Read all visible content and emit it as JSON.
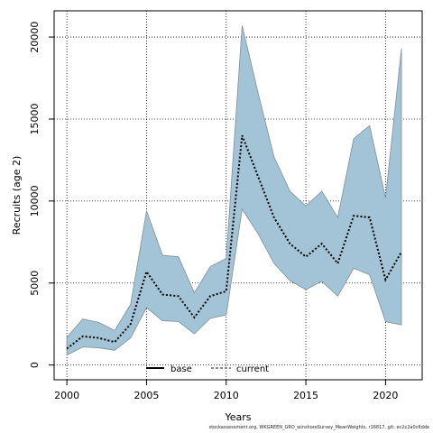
{
  "chart_data": {
    "type": "area",
    "xlabel": "Years",
    "ylabel": "Recruits (age 2)",
    "xlim": [
      1999.2,
      2022.3
    ],
    "ylim": [
      -900,
      21600
    ],
    "xticks": [
      2000,
      2005,
      2010,
      2015,
      2020
    ],
    "yticks": [
      0,
      5000,
      10000,
      15000,
      20000
    ],
    "grid": true,
    "legend_position": "bottom-center",
    "legend": [
      "base",
      "current"
    ],
    "colors": {
      "band": "#a2c4d6",
      "band_edge": "#7f8f99",
      "line": "#000000"
    },
    "x": [
      2000,
      2001,
      2002,
      2003,
      2004,
      2005,
      2006,
      2007,
      2008,
      2009,
      2010,
      2011,
      2012,
      2013,
      2014,
      2015,
      2016,
      2017,
      2018,
      2019,
      2020,
      2021
    ],
    "series": [
      {
        "name": "current",
        "style": "dotted",
        "values": [
          1000,
          1750,
          1650,
          1400,
          2500,
          5700,
          4300,
          4200,
          2900,
          4200,
          4500,
          14000,
          11500,
          9000,
          7400,
          6600,
          7400,
          6200,
          9100,
          9000,
          5200,
          6900
        ]
      },
      {
        "name": "upper",
        "values": [
          1700,
          2800,
          2600,
          2100,
          3700,
          9400,
          6700,
          6600,
          4400,
          6000,
          6500,
          20700,
          16600,
          12700,
          10600,
          9700,
          10600,
          9000,
          13800,
          14600,
          10200,
          19300
        ]
      },
      {
        "name": "lower",
        "values": [
          600,
          1100,
          1050,
          900,
          1650,
          3500,
          2700,
          2650,
          1900,
          2850,
          3050,
          9500,
          8000,
          6200,
          5150,
          4600,
          5100,
          4200,
          5900,
          5500,
          2650,
          2450
        ]
      }
    ]
  },
  "footer": "stockassessment.org, WKGREEN_GRO_winshoreSurvey_MeanWeights, r16817, git: ec2c2a0c6dde"
}
